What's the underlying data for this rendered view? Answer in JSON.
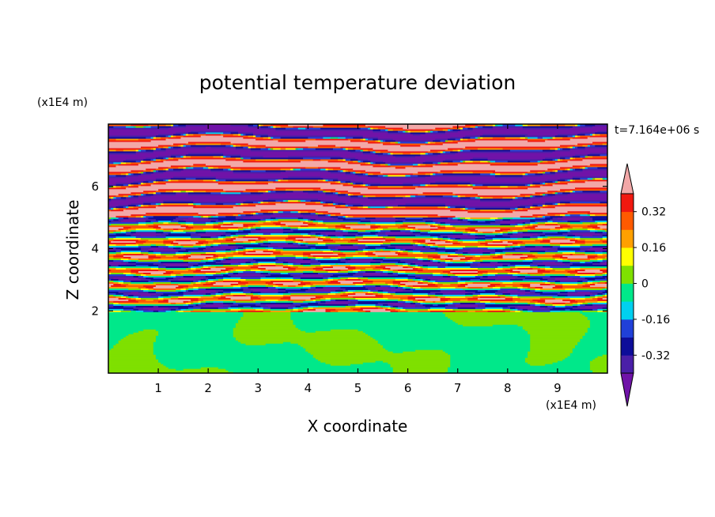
{
  "chart_data": {
    "type": "heatmap",
    "title": "potential temperature deviation",
    "xlabel": "X coordinate",
    "ylabel": "Z coordinate",
    "x_unit": "(x1E4 m)",
    "y_unit": "(x1E4 m)",
    "time_label": "t=7.164e+06 s",
    "xlim": [
      0,
      10
    ],
    "ylim": [
      0,
      8
    ],
    "x_ticks": [
      1,
      2,
      3,
      4,
      5,
      6,
      7,
      8,
      9
    ],
    "y_ticks": [
      2,
      4,
      6
    ],
    "colorbar": {
      "levels": [
        -0.4,
        -0.32,
        -0.24,
        -0.16,
        -0.08,
        0,
        0.08,
        0.16,
        0.24,
        0.32,
        0.4
      ],
      "labels": [
        "0.32",
        "0.16",
        "0",
        "-0.16",
        "-0.32"
      ],
      "label_values": [
        0.32,
        0.16,
        0,
        -0.16,
        -0.32
      ],
      "colors": [
        "#4a1fa8",
        "#0d0d99",
        "#2040d8",
        "#00d0f0",
        "#00e88a",
        "#7fe000",
        "#ffff00",
        "#ffa000",
        "#ff5a00",
        "#f01810"
      ],
      "under_color": "#7013a8",
      "over_color": "#f2a8a8",
      "extend": "both"
    },
    "regions": [
      {
        "z_range": [
          0,
          2
        ],
        "description_values": [
          -0.04,
          0.04
        ]
      },
      {
        "z_range": [
          2,
          5
        ],
        "description_values": [
          -0.4,
          0.4
        ]
      },
      {
        "z_range": [
          5,
          8
        ],
        "description_values": [
          -0.4,
          0.4
        ]
      }
    ]
  }
}
